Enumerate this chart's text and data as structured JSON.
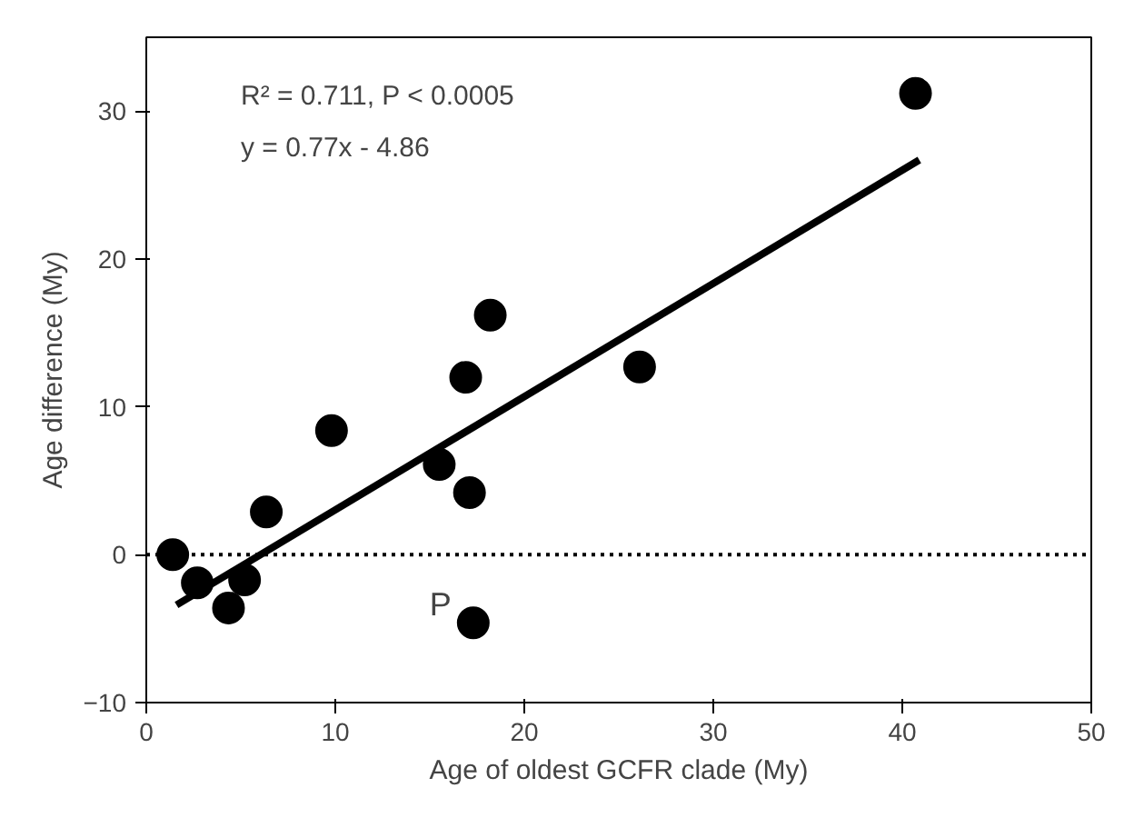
{
  "chart_data": {
    "type": "scatter",
    "xlabel": "Age of oldest GCFR clade (My)",
    "ylabel": "Age difference (My)",
    "xlim": [
      0,
      50
    ],
    "xticks": [
      0,
      10,
      20,
      30,
      40,
      50
    ],
    "ylim": [
      -10,
      35
    ],
    "yticks": [
      -10,
      0,
      10,
      20,
      30
    ],
    "grid": false,
    "marker": "circle",
    "series": [
      {
        "color": "#000000",
        "x": [
          1.4,
          2.7,
          4.35,
          5.2,
          6.35,
          9.8,
          15.5,
          17.1,
          16.9,
          17.3,
          18.2,
          26.1,
          40.7
        ],
        "values": [
          0,
          -1.9,
          -3.6,
          -1.7,
          2.9,
          8.4,
          6.1,
          4.2,
          12.0,
          -4.6,
          16.2,
          12.7,
          31.2
        ]
      },
      {
        "type": "line",
        "color": "#000000",
        "x": [
          1.6,
          40.9
        ],
        "values": [
          -3.4,
          26.7
        ],
        "line_style": "solid",
        "marker": "none"
      }
    ],
    "ref_lines": [
      {
        "axis": "y",
        "value": 0,
        "color": "#000000",
        "line_style": "dotted"
      }
    ],
    "annotations": [
      "R² = 0.711, P < 0.0005",
      "y = 0.77x - 4.86",
      {
        "text": "P",
        "x": 17.3,
        "y": -4.6
      }
    ]
  }
}
